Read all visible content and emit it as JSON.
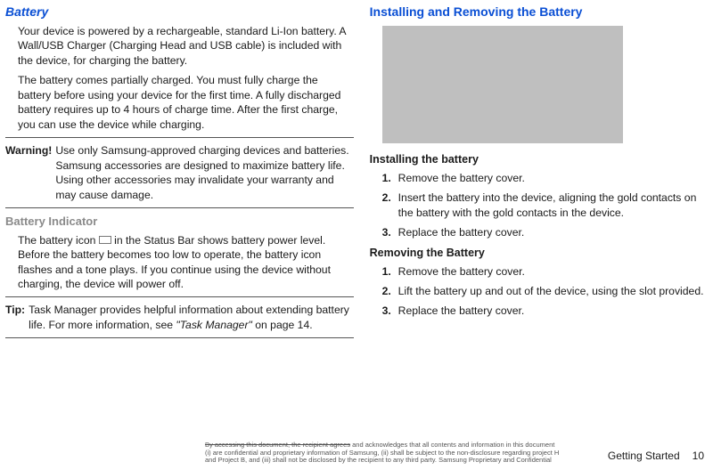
{
  "left": {
    "battery_heading": "Battery",
    "battery_p1": "Your device is powered by a rechargeable, standard Li-Ion battery. A Wall/USB Charger (Charging Head and USB cable) is included with the device, for charging the battery.",
    "battery_p2": "The battery comes partially charged. You must fully charge the battery before using your device for the first time. A fully discharged battery requires up to 4 hours of charge time. After the first charge, you can use the device while charging.",
    "warning_label": "Warning!",
    "warning_body": "Use only Samsung-approved charging devices and batteries. Samsung accessories are designed to maximize battery life. Using other accessories may invalidate your warranty and may cause damage.",
    "indicator_heading": "Battery Indicator",
    "indicator_p_a": "The battery icon ",
    "indicator_p_b": " in the Status Bar shows battery power level. Before the battery becomes too low to operate, the battery icon flashes and a tone plays. If you continue using the device without charging, the device will power off.",
    "tip_label": "Tip:",
    "tip_body_a": "Task Manager provides helpful information about extending battery life. For more information, see ",
    "tip_body_italic": "\"Task Manager\"",
    "tip_body_b": " on page 14."
  },
  "right": {
    "install_heading": "Installing and Removing the Battery",
    "install_sub": "Installing the battery",
    "install_steps": [
      "Remove the battery cover.",
      "Insert the battery into the device, aligning the gold contacts on the battery with the gold contacts in the device.",
      "Replace the battery cover."
    ],
    "remove_sub": "Removing the Battery",
    "remove_steps": [
      "Remove the battery cover.",
      "Lift the battery up and out of the device, using the slot provided.",
      "Replace the battery cover."
    ]
  },
  "footer": {
    "legal_strike": "By accessing this document, the recipient agrees",
    "legal_rest": " and acknowledges that all contents and information in this document (i) are confidential and proprietary information of Samsung, (ii) shall be subject to the non-disclosure regarding project H and Project B, and (iii) shall not be disclosed by the recipient to any third party. Samsung Proprietary and Confidential",
    "section": "Getting Started",
    "page": "10"
  }
}
